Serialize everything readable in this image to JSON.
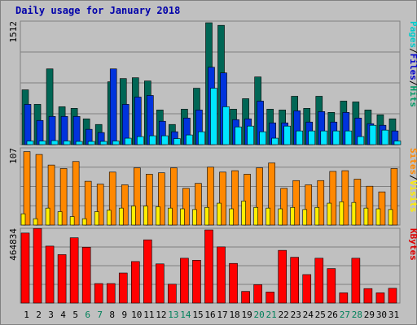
{
  "chart_data": {
    "type": "bar",
    "title": "Daily usage for January 2018",
    "categories": [
      "1",
      "2",
      "3",
      "4",
      "5",
      "6",
      "7",
      "8",
      "9",
      "10",
      "11",
      "12",
      "13",
      "14",
      "15",
      "16",
      "17",
      "18",
      "19",
      "20",
      "21",
      "22",
      "23",
      "24",
      "25",
      "26",
      "27",
      "28",
      "29",
      "30",
      "31"
    ],
    "weekend_days": [
      "6",
      "7",
      "13",
      "14",
      "20",
      "21",
      "27",
      "28"
    ],
    "panels": [
      {
        "id": "pages-files-hits",
        "ymax": 1512,
        "ymax_label": "1512",
        "legend": [
          "Pages",
          "/",
          "Files",
          "/",
          "Hits"
        ],
        "legend_colors": [
          "#00cccc",
          "#000000",
          "#0000cc",
          "#000000",
          "#009966"
        ],
        "series": [
          {
            "name": "Hits",
            "color": "#006655",
            "values": [
              680,
              500,
              940,
              470,
              450,
              320,
              250,
              780,
              820,
              830,
              790,
              430,
              250,
              440,
              700,
              1512,
              1480,
              440,
              570,
              840,
              440,
              430,
              600,
              450,
              600,
              400,
              540,
              530,
              430,
              370,
              320
            ]
          },
          {
            "name": "Files",
            "color": "#0033dd",
            "values": [
              500,
              300,
              350,
              350,
              350,
              190,
              150,
              940,
              500,
              590,
              610,
              290,
              160,
              330,
              430,
              960,
              890,
              310,
              320,
              540,
              270,
              270,
              420,
              280,
              410,
              280,
              400,
              330,
              260,
              240,
              170
            ]
          },
          {
            "name": "Pages",
            "color": "#00e5ff",
            "values": [
              45,
              45,
              50,
              45,
              40,
              40,
              40,
              45,
              80,
              100,
              110,
              110,
              75,
              120,
              160,
              700,
              470,
              220,
              230,
              160,
              80,
              230,
              170,
              170,
              170,
              170,
              170,
              100,
              240,
              180,
              45
            ]
          }
        ]
      },
      {
        "id": "sites-visits",
        "ymax": 107,
        "ymax_label": "107",
        "legend": [
          "Sites",
          "/",
          "Visits"
        ],
        "legend_colors": [
          "#ff8800",
          "#000000",
          "#ffee00"
        ],
        "series": [
          {
            "name": "Visits",
            "color": "#ff8800",
            "values": [
              104,
              100,
              85,
              80,
              90,
              62,
              58,
              75,
              57,
              81,
              72,
              74,
              81,
              52,
              59,
              82,
              75,
              77,
              72,
              81,
              88,
              52,
              63,
              57,
              63,
              76,
              77,
              65,
              55,
              47,
              80
            ]
          },
          {
            "name": "Sites",
            "color": "#ffee00",
            "values": [
              16,
              9,
              24,
              19,
              12,
              9,
              19,
              21,
              24,
              27,
              27,
              26,
              24,
              23,
              22,
              25,
              31,
              23,
              34,
              25,
              24,
              23,
              25,
              22,
              25,
              31,
              33,
              32,
              24,
              23,
              22
            ]
          }
        ]
      },
      {
        "id": "kbytes",
        "ymax": 464834,
        "ymax_label": "464834",
        "legend": [
          "KBytes"
        ],
        "legend_colors": [
          "#dd0000"
        ],
        "series": [
          {
            "name": "KBytes",
            "color": "#ff0000",
            "values": [
              445000,
              474000,
              362000,
              308000,
              415000,
              355000,
              124000,
              124000,
              191000,
              264000,
              402000,
              249000,
              120000,
              285000,
              272000,
              464834,
              357000,
              252000,
              74000,
              117000,
              70000,
              335000,
              291000,
              181000,
              285000,
              219000,
              65000,
              285000,
              92000,
              65000,
              94000
            ]
          }
        ]
      }
    ]
  }
}
